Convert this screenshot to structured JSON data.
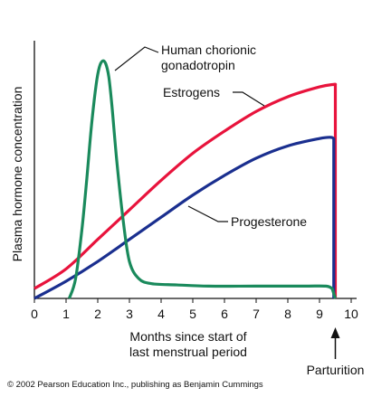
{
  "chart_data": {
    "type": "line",
    "xlabel": [
      "Months since start of",
      "last menstrual period"
    ],
    "ylabel": "Plasma hormone concentration",
    "xlim": [
      0,
      10
    ],
    "ylim": [
      0,
      1
    ],
    "x_ticks": [
      0,
      1,
      2,
      3,
      4,
      5,
      6,
      7,
      8,
      9,
      10
    ],
    "x_tick_labels": [
      "0",
      "1",
      "2",
      "3",
      "4",
      "5",
      "6",
      "7",
      "8",
      "9",
      "10"
    ],
    "y_ticks_shown": false,
    "grid": false,
    "series": [
      {
        "name": "Human chorionic gonadotropin",
        "color": "#1a8a5c",
        "x": [
          1.1,
          1.3,
          1.5,
          1.65,
          1.8,
          1.95,
          2.05,
          2.15,
          2.25,
          2.35,
          2.45,
          2.6,
          2.8,
          3.0,
          3.3,
          3.7,
          4.5,
          5.5,
          7.0,
          8.5,
          9.2,
          9.4,
          9.5
        ],
        "y": [
          0.0,
          0.08,
          0.28,
          0.48,
          0.7,
          0.87,
          0.94,
          0.965,
          0.955,
          0.9,
          0.78,
          0.56,
          0.32,
          0.15,
          0.08,
          0.06,
          0.055,
          0.05,
          0.05,
          0.05,
          0.05,
          0.04,
          0.0
        ]
      },
      {
        "name": "Estrogens",
        "color": "#e8133c",
        "x": [
          0.0,
          1.0,
          2.0,
          3.0,
          4.0,
          5.0,
          6.0,
          7.0,
          8.0,
          9.0,
          9.45,
          9.5,
          9.5
        ],
        "y": [
          0.04,
          0.12,
          0.24,
          0.36,
          0.48,
          0.59,
          0.68,
          0.76,
          0.82,
          0.86,
          0.87,
          0.87,
          0.0
        ]
      },
      {
        "name": "Progesterone",
        "color": "#1a2f8f",
        "x": [
          0.0,
          1.0,
          2.0,
          3.0,
          4.0,
          5.0,
          6.0,
          7.0,
          8.0,
          9.0,
          9.35,
          9.45,
          9.45
        ],
        "y": [
          0.0,
          0.07,
          0.15,
          0.24,
          0.33,
          0.42,
          0.5,
          0.57,
          0.62,
          0.65,
          0.655,
          0.65,
          0.0
        ]
      }
    ],
    "annotations": [
      {
        "lines": [
          "Human chorionic",
          "gonadotropin"
        ],
        "series": "Human chorionic gonadotropin"
      },
      {
        "lines": [
          "Estrogens"
        ],
        "series": "Estrogens"
      },
      {
        "lines": [
          "Progesterone"
        ],
        "series": "Progesterone"
      },
      {
        "lines": [
          "Parturition"
        ],
        "points_to_x": 9.5
      }
    ]
  },
  "copyright": "© 2002 Pearson Education Inc., publishing as Benjamin Cummings"
}
